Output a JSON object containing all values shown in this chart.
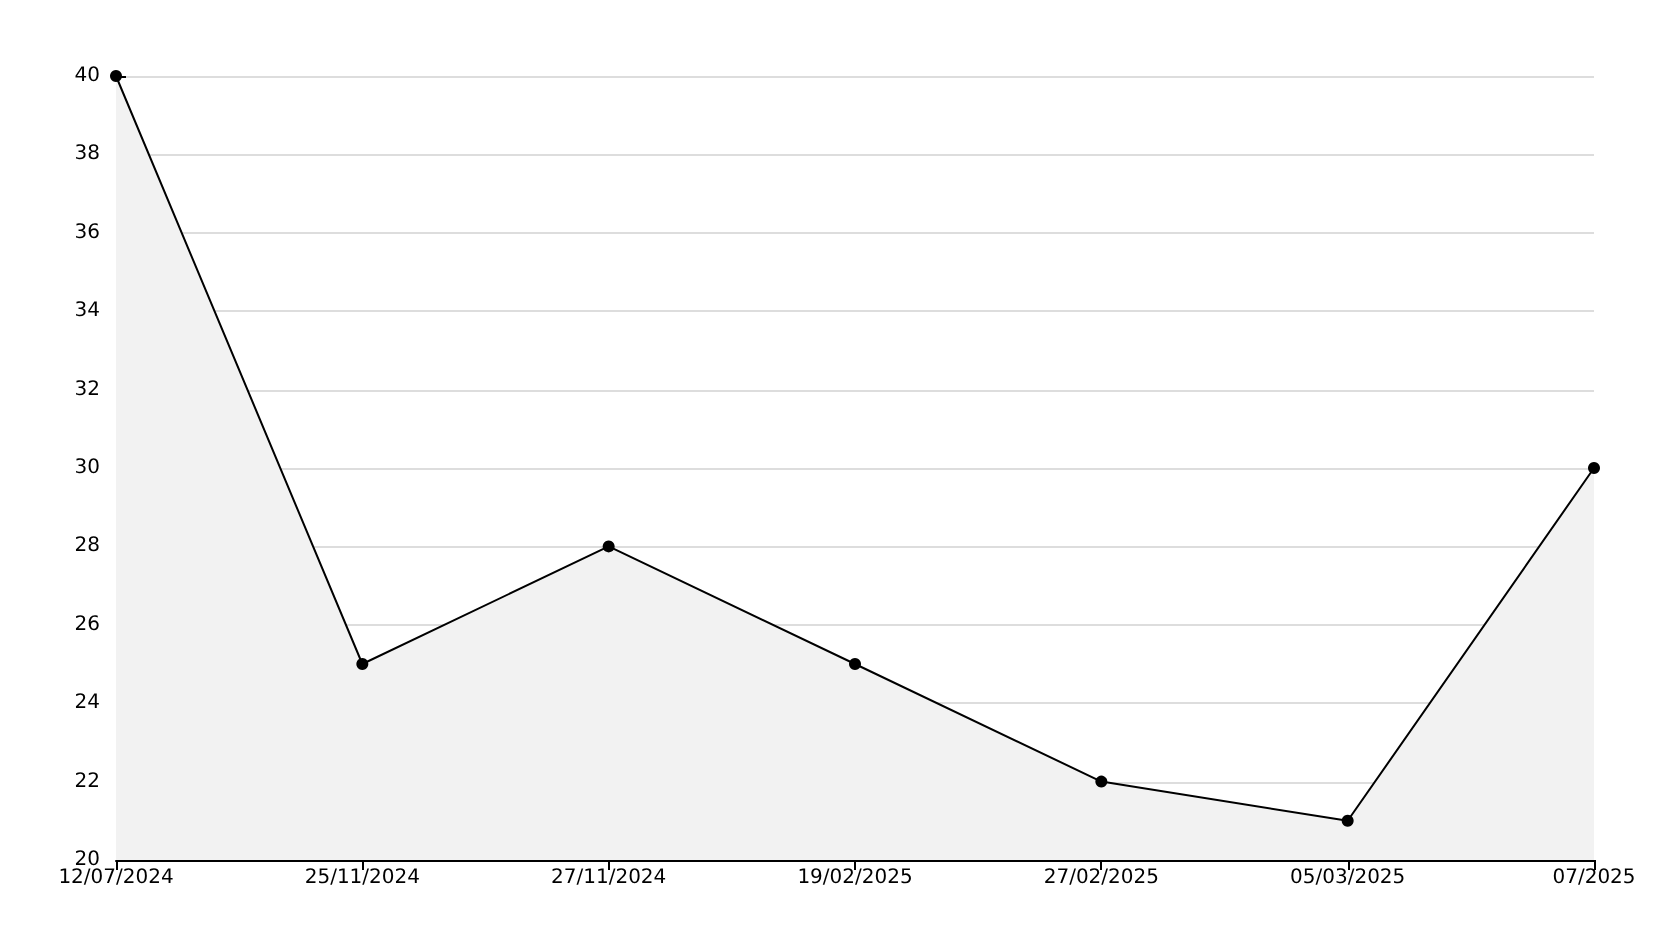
{
  "chart_data": {
    "type": "area",
    "categories": [
      "12/07/2024",
      "25/11/2024",
      "27/11/2024",
      "19/02/2025",
      "27/02/2025",
      "05/03/2025",
      "07/2025"
    ],
    "series": [
      {
        "color": "#000000",
        "values": [
          40,
          25,
          28,
          25,
          22,
          21,
          30
        ]
      }
    ],
    "ylim": [
      20,
      40
    ],
    "yticks": [
      20,
      22,
      24,
      26,
      28,
      30,
      32,
      34,
      36,
      38,
      40
    ],
    "grid": "y",
    "marker": "circle",
    "line_style": "solid"
  }
}
